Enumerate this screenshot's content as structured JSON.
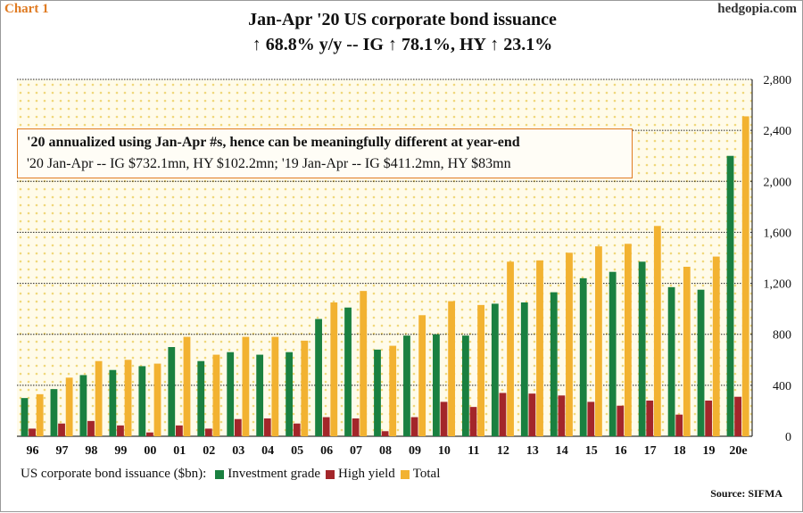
{
  "header": {
    "chart_label": "Chart 1",
    "site": "hedgopia.com",
    "title_line1": "Jan-Apr '20 US corporate bond issuance",
    "title_line2": "↑ 68.8% y/y -- IG ↑ 78.1%, HY ↑ 23.1%"
  },
  "note": {
    "line1": "'20 annualized using Jan-Apr #s, hence can be meaningfully different  at year-end",
    "line2": "'20 Jan-Apr  -- IG $732.1mn, HY $102.2mn; '19 Jan-Apr  -- IG $411.2mn, HY $83mn"
  },
  "legend": {
    "label": "US corporate bond issuance ($bn):",
    "ig": "Investment grade",
    "hy": "High yield",
    "total": "Total"
  },
  "source": "Source: SIFMA",
  "colors": {
    "ig": "#1a8040",
    "hy": "#a3262a",
    "total": "#f2b231",
    "dots": "#f0d77a",
    "note_border": "#e07b22"
  },
  "chart_data": {
    "type": "bar",
    "title": "Jan-Apr '20 US corporate bond issuance",
    "xlabel": "",
    "ylabel": "US corporate bond issuance ($bn)",
    "ylim": [
      0,
      2800
    ],
    "yticks": [
      0,
      400,
      800,
      1200,
      1600,
      2000,
      2400,
      2800
    ],
    "ytick_labels": [
      "0",
      "400",
      "800",
      "1,200",
      "1,600",
      "2,000",
      "2,400",
      "2,800"
    ],
    "categories": [
      "96",
      "97",
      "98",
      "99",
      "00",
      "01",
      "02",
      "03",
      "04",
      "05",
      "06",
      "07",
      "08",
      "09",
      "10",
      "11",
      "12",
      "13",
      "14",
      "15",
      "16",
      "17",
      "18",
      "19",
      "20e"
    ],
    "series": [
      {
        "name": "Investment grade",
        "key": "ig",
        "values": [
          300,
          370,
          480,
          520,
          550,
          700,
          590,
          660,
          640,
          660,
          920,
          1010,
          680,
          790,
          800,
          790,
          1040,
          1050,
          1130,
          1240,
          1290,
          1370,
          1170,
          1150,
          2200
        ]
      },
      {
        "name": "High yield",
        "key": "hy",
        "values": [
          60,
          100,
          120,
          85,
          30,
          85,
          60,
          135,
          140,
          100,
          150,
          140,
          40,
          150,
          270,
          230,
          340,
          335,
          320,
          270,
          240,
          280,
          170,
          280,
          310
        ]
      },
      {
        "name": "Total",
        "key": "total",
        "values": [
          330,
          460,
          590,
          600,
          570,
          780,
          640,
          780,
          780,
          750,
          1050,
          1140,
          710,
          950,
          1060,
          1030,
          1370,
          1380,
          1440,
          1490,
          1510,
          1650,
          1330,
          1410,
          2510
        ]
      }
    ],
    "grid": true,
    "y_axis_side": "right"
  }
}
